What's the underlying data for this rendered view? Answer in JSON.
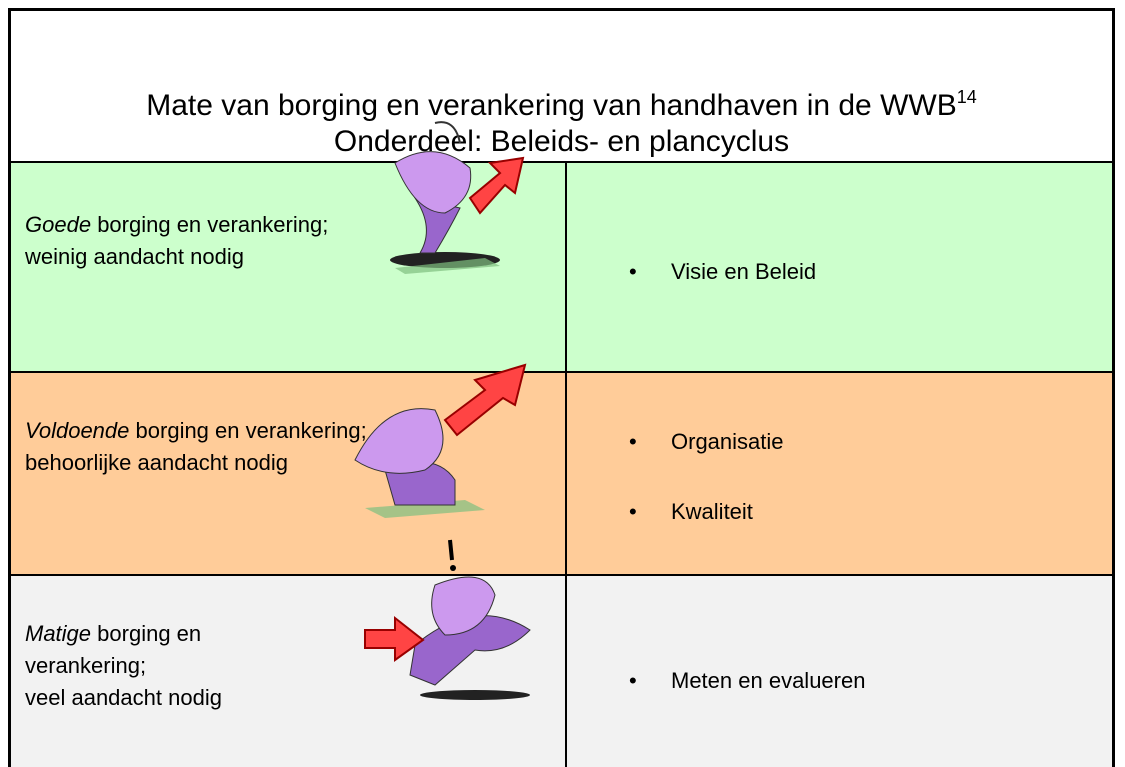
{
  "header": {
    "title": "Mate van borging en verankering van handhaven in de WWB",
    "footnote": "14",
    "subtitle": "Onderdeel: Beleids- en plancyclus"
  },
  "rows": [
    {
      "level": "Goede",
      "description": [
        "borging en verankering;",
        "weinig aandacht nodig"
      ],
      "items": [
        "Visie en Beleid"
      ]
    },
    {
      "level": "Voldoende",
      "description": [
        "borging en verankering;",
        "behoorlijke aandacht nodig"
      ],
      "items": [
        "Organisatie",
        "Kwaliteit"
      ]
    },
    {
      "level": "Matige",
      "description": [
        "borging en",
        "verankering;",
        "veel aandacht nodig"
      ],
      "items": [
        "Meten en evalueren"
      ]
    }
  ]
}
